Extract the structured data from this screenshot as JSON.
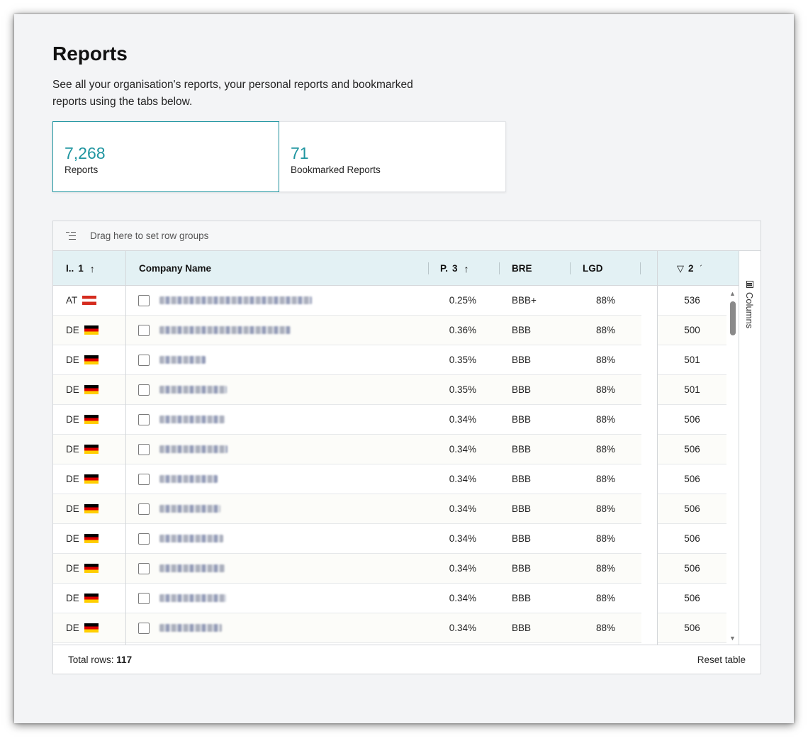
{
  "page": {
    "title": "Reports",
    "description": "See all your organisation's reports, your personal reports and bookmarked reports using the tabs below."
  },
  "stats": [
    {
      "value": "7,268",
      "label": "Reports",
      "active": true
    },
    {
      "value": "71",
      "label": "Bookmarked Reports",
      "active": false
    }
  ],
  "grid": {
    "group_panel_text": "Drag here to set row groups",
    "columns": {
      "country": {
        "label": "I..",
        "sort_index": "1",
        "sort_icon": "↑"
      },
      "company": {
        "label": "Company Name"
      },
      "pd": {
        "label": "P.",
        "sort_index": "3",
        "sort_icon": "↑"
      },
      "bre": {
        "label": "BRE"
      },
      "lgd": {
        "label": "LGD"
      },
      "score": {
        "label": "2",
        "filter_icon": "filter-icon",
        "sort_icon": "´"
      }
    },
    "side_bar": {
      "columns_label": "Columns"
    },
    "rows": [
      {
        "country": "AT",
        "flag": "flag-at",
        "name_width": 215,
        "pd": "0.25%",
        "bre": "BBB+",
        "lgd": "88%",
        "score": "536"
      },
      {
        "country": "DE",
        "flag": "flag-de",
        "name_width": 185,
        "pd": "0.36%",
        "bre": "BBB",
        "lgd": "88%",
        "score": "500"
      },
      {
        "country": "DE",
        "flag": "flag-de",
        "name_width": 65,
        "pd": "0.35%",
        "bre": "BBB",
        "lgd": "88%",
        "score": "501"
      },
      {
        "country": "DE",
        "flag": "flag-de",
        "name_width": 95,
        "pd": "0.35%",
        "bre": "BBB",
        "lgd": "88%",
        "score": "501"
      },
      {
        "country": "DE",
        "flag": "flag-de",
        "name_width": 92,
        "pd": "0.34%",
        "bre": "BBB",
        "lgd": "88%",
        "score": "506"
      },
      {
        "country": "DE",
        "flag": "flag-de",
        "name_width": 96,
        "pd": "0.34%",
        "bre": "BBB",
        "lgd": "88%",
        "score": "506"
      },
      {
        "country": "DE",
        "flag": "flag-de",
        "name_width": 82,
        "pd": "0.34%",
        "bre": "BBB",
        "lgd": "88%",
        "score": "506"
      },
      {
        "country": "DE",
        "flag": "flag-de",
        "name_width": 86,
        "pd": "0.34%",
        "bre": "BBB",
        "lgd": "88%",
        "score": "506"
      },
      {
        "country": "DE",
        "flag": "flag-de",
        "name_width": 90,
        "pd": "0.34%",
        "bre": "BBB",
        "lgd": "88%",
        "score": "506"
      },
      {
        "country": "DE",
        "flag": "flag-de",
        "name_width": 92,
        "pd": "0.34%",
        "bre": "BBB",
        "lgd": "88%",
        "score": "506"
      },
      {
        "country": "DE",
        "flag": "flag-de",
        "name_width": 94,
        "pd": "0.34%",
        "bre": "BBB",
        "lgd": "88%",
        "score": "506"
      },
      {
        "country": "DE",
        "flag": "flag-de",
        "name_width": 88,
        "pd": "0.34%",
        "bre": "BBB",
        "lgd": "88%",
        "score": "506"
      }
    ],
    "status": {
      "total_label": "Total rows:",
      "total_value": "117",
      "reset_label": "Reset table"
    }
  },
  "colors": {
    "accent": "#1f95a0",
    "header_bg": "#e3f1f4"
  }
}
